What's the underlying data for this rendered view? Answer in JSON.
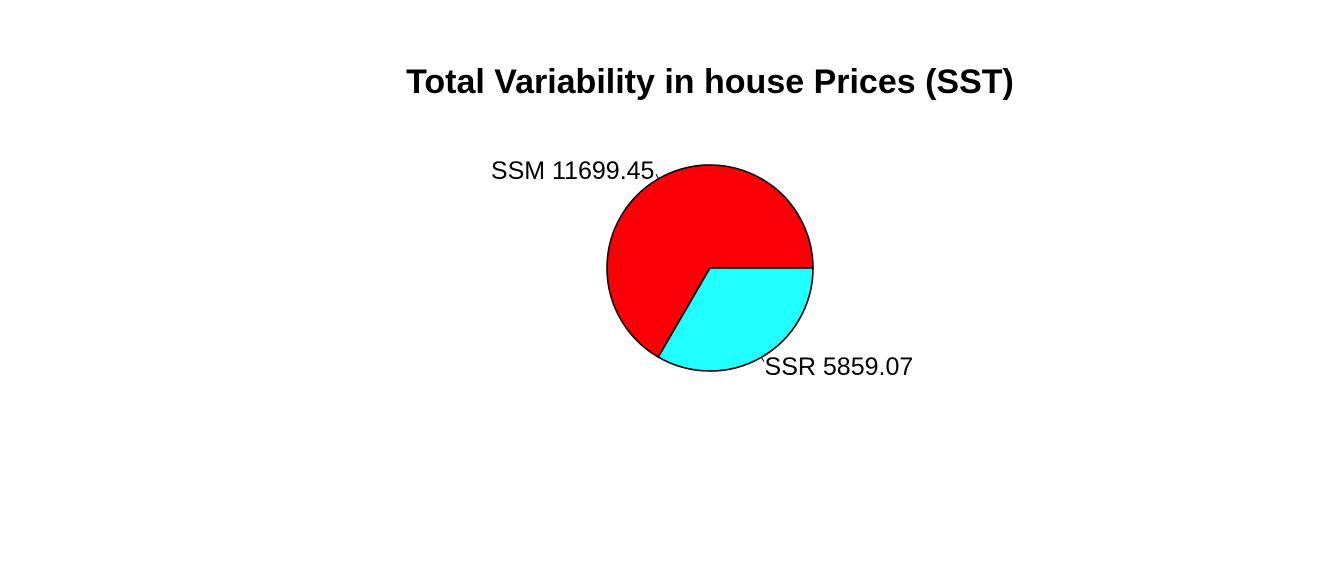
{
  "chart_data": {
    "type": "pie",
    "title": "Total Variability in house Prices (SST)",
    "slices": [
      {
        "label": "SSM 11699.45",
        "value": 11699.45,
        "color": "#FA0006"
      },
      {
        "label": "SSR 5859.07",
        "value": 5859.07,
        "color": "#22FFFF"
      }
    ],
    "start_angle_deg": 0,
    "direction": "counterclockwise",
    "legend": "none"
  }
}
